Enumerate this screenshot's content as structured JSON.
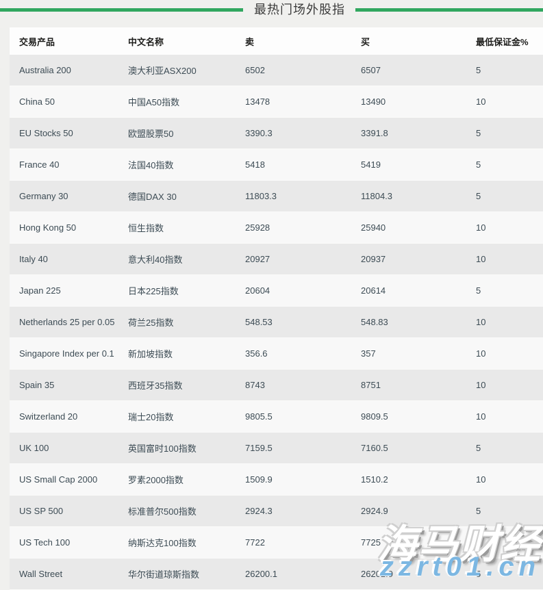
{
  "title": "最热门场外股指",
  "table": {
    "headers": [
      "交易产品",
      "中文名称",
      "卖",
      "买",
      "最低保证金%"
    ],
    "rows": [
      [
        "Australia 200",
        "澳大利亚ASX200",
        "6502",
        "6507",
        "5"
      ],
      [
        "China 50",
        "中国A50指数",
        "13478",
        "13490",
        "10"
      ],
      [
        "EU Stocks 50",
        "欧盟股票50",
        "3390.3",
        "3391.8",
        "5"
      ],
      [
        "France 40",
        "法国40指数",
        "5418",
        "5419",
        "5"
      ],
      [
        "Germany 30",
        "德国DAX 30",
        "11803.3",
        "11804.3",
        "5"
      ],
      [
        "Hong Kong 50",
        "恒生指数",
        "25928",
        "25940",
        "10"
      ],
      [
        "Italy 40",
        "意大利40指数",
        "20927",
        "20937",
        "10"
      ],
      [
        "Japan 225",
        "日本225指数",
        "20604",
        "20614",
        "5"
      ],
      [
        "Netherlands 25 per 0.05",
        "荷兰25指数",
        "548.53",
        "548.83",
        "10"
      ],
      [
        "Singapore Index per 0.1",
        "新加坡指数",
        "356.6",
        "357",
        "10"
      ],
      [
        "Spain 35",
        "西班牙35指数",
        "8743",
        "8751",
        "10"
      ],
      [
        "Switzerland 20",
        "瑞士20指数",
        "9805.5",
        "9809.5",
        "10"
      ],
      [
        "UK 100",
        "英国富时100指数",
        "7159.5",
        "7160.5",
        "5"
      ],
      [
        "US Small Cap 2000",
        "罗素2000指数",
        "1509.9",
        "1510.2",
        "10"
      ],
      [
        "US SP 500",
        "标准普尔500指数",
        "2924.3",
        "2924.9",
        "5"
      ],
      [
        "US Tech 100",
        "纳斯达克100指数",
        "7722",
        "7725",
        "5"
      ],
      [
        "Wall Street",
        "华尔街道琼斯指数",
        "26200.1",
        "26202.9",
        "5"
      ]
    ]
  },
  "watermark": {
    "brand": "海马财经",
    "url": "zzrt01.cn"
  },
  "colors": {
    "accent_green": "#31a75f",
    "page_background": "#f0f0ee",
    "header_row_bg": "#fdfdfd",
    "row_odd_bg": "#e9e9e9",
    "row_even_bg": "#f8f8f8",
    "text_dark": "#1c1c1a",
    "text_body": "#3c4b54",
    "watermark_blue": "#7cb7e2"
  }
}
